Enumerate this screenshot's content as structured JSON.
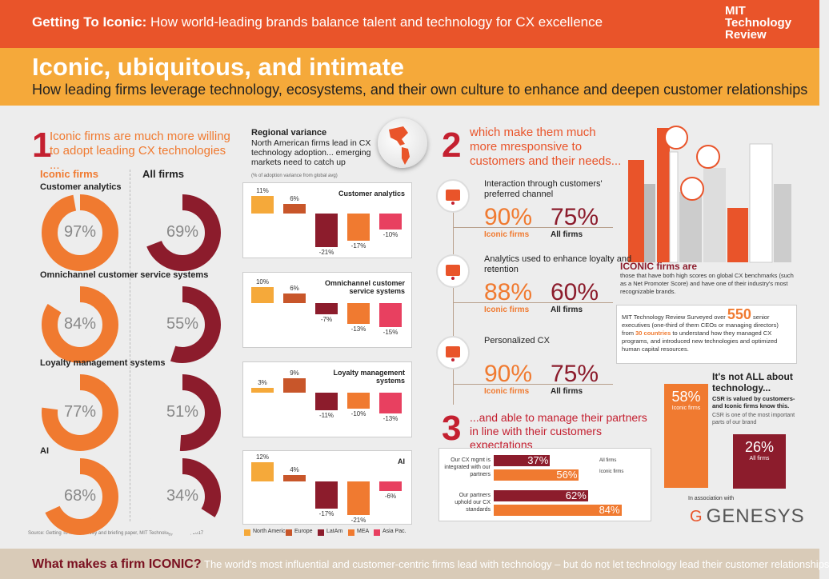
{
  "header": {
    "title_bold": "Getting To Iconic:",
    "title_rest": "How world-leading brands balance talent and technology for CX excellence",
    "brand": [
      "MIT",
      "Technology",
      "Review"
    ]
  },
  "hero": {
    "title": "Iconic, ubiquitous, and intimate",
    "subtitle": "How leading firms leverage technology, ecosystems, and their own culture to enhance and deepen customer relationships"
  },
  "section1": {
    "num": "1",
    "text": "Iconic firms are much more willing to adopt leading CX technologies ...",
    "iconic_label": "Iconic firms",
    "all_label": "All firms",
    "source": "Source: Getting To Iconic survey and briefing paper, MIT Technology Review, 2017",
    "rows": [
      {
        "name": "Customer analytics",
        "iconic": "97%",
        "all": "69%",
        "iconic_v": 97,
        "all_v": 69
      },
      {
        "name": "Omnichannel customer service systems",
        "iconic": "84%",
        "all": "55%",
        "iconic_v": 84,
        "all_v": 55
      },
      {
        "name": "Loyalty management systems",
        "iconic": "77%",
        "all": "51%",
        "iconic_v": 77,
        "all_v": 51
      },
      {
        "name": "AI",
        "iconic": "68%",
        "all": "34%",
        "iconic_v": 68,
        "all_v": 34
      }
    ]
  },
  "regional": {
    "title": "Regional variance",
    "text": "North American firms lead in CX technology adoption... emerging markets need to catch up",
    "note": "(% of adoption variance from global avg)",
    "legend": [
      "North America",
      "Europe",
      "LatAm",
      "MEA",
      "Asia Pac."
    ],
    "colors": [
      "#f5a93a",
      "#c8562a",
      "#8c1c2c",
      "#f07a30",
      "#e84060"
    ]
  },
  "chart_data": [
    {
      "type": "bar",
      "title": "Customer analytics",
      "categories": [
        "North America",
        "Europe",
        "LatAm",
        "MEA",
        "Asia Pac."
      ],
      "values": [
        11,
        6,
        -21,
        -17,
        -10
      ],
      "labels": [
        "11%",
        "6%",
        "-21%",
        "-17%",
        "-10%"
      ]
    },
    {
      "type": "bar",
      "title": "Omnichannel customer service systems",
      "categories": [
        "North America",
        "Europe",
        "LatAm",
        "MEA",
        "Asia Pac."
      ],
      "values": [
        10,
        6,
        -7,
        -13,
        -15
      ],
      "labels": [
        "10%",
        "6%",
        "-7%",
        "-13%",
        "-15%"
      ]
    },
    {
      "type": "bar",
      "title": "Loyalty management systems",
      "categories": [
        "North America",
        "Europe",
        "LatAm",
        "MEA",
        "Asia Pac."
      ],
      "values": [
        3,
        9,
        -11,
        -10,
        -13
      ],
      "labels": [
        "3%",
        "9%",
        "-11%",
        "-10%",
        "-13%"
      ]
    },
    {
      "type": "bar",
      "title": "AI",
      "categories": [
        "North America",
        "Europe",
        "LatAm",
        "MEA",
        "Asia Pac."
      ],
      "values": [
        12,
        4,
        -17,
        -21,
        -6
      ],
      "labels": [
        "12%",
        "4%",
        "-17%",
        "-21%",
        "-6%"
      ]
    },
    {
      "type": "bar",
      "categories": [
        "Our CX mgmt is integrated with our partners",
        "Our partners uphold our CX standards"
      ],
      "series": [
        {
          "name": "All firms",
          "values": [
            37,
            62
          ]
        },
        {
          "name": "Iconic firms",
          "values": [
            56,
            84
          ]
        }
      ],
      "labels": [
        [
          "37%",
          "56%"
        ],
        [
          "62%",
          "84%"
        ]
      ]
    }
  ],
  "section2": {
    "num": "2",
    "text": "which make them much more mresponsive to customers and their needs...",
    "items": [
      {
        "title": "Interaction through customers' preferred channel",
        "iconic": "90%",
        "all": "75%"
      },
      {
        "title": "Analytics used to enhance loyalty and retention",
        "iconic": "88%",
        "all": "60%"
      },
      {
        "title": "Personalized CX",
        "iconic": "90%",
        "all": "75%"
      }
    ],
    "iconic_label": "Iconic firms",
    "all_label": "All firms"
  },
  "section3": {
    "num": "3",
    "text": "...and able to manage their partners in line with their customers expectations",
    "legend_all": "All firms",
    "legend_iconic": "Iconic firms",
    "rows": [
      "Our CX mgmt is integrated with our partners",
      "Our partners uphold our CX standards"
    ]
  },
  "iconic_def": {
    "title": "ICONIC firms are",
    "text": "those that have both high scores on global CX benchmarks (such as a Net Promoter Score) and have one of their industry's most recognizable brands."
  },
  "survey": {
    "t1": "MIT Technology Review Surveyed over",
    "n1": "550",
    "t2": "senior executives (one-third of them CEOs or managing directors) from",
    "n2": "30 countries",
    "t3": "to understand how they managed CX programs, and introduced new technologies and optimized human capital resources."
  },
  "csr": {
    "title": "It's not ALL about technology...",
    "bold": "CSR is valued by customers- and Iconic firms know this.",
    "text": "CSR is one of the most important parts of our brand",
    "iconic_pct": "58%",
    "iconic_lbl": "Iconic firms",
    "all_pct": "26%",
    "all_lbl": "All firms"
  },
  "assoc": {
    "text": "In association with",
    "logo": "GENESYS"
  },
  "bottom": {
    "q": "What makes a firm ICONIC?",
    "text": "The world's most influential and customer-centric firms lead with technology – but do not let technology lead their customer relationships"
  }
}
